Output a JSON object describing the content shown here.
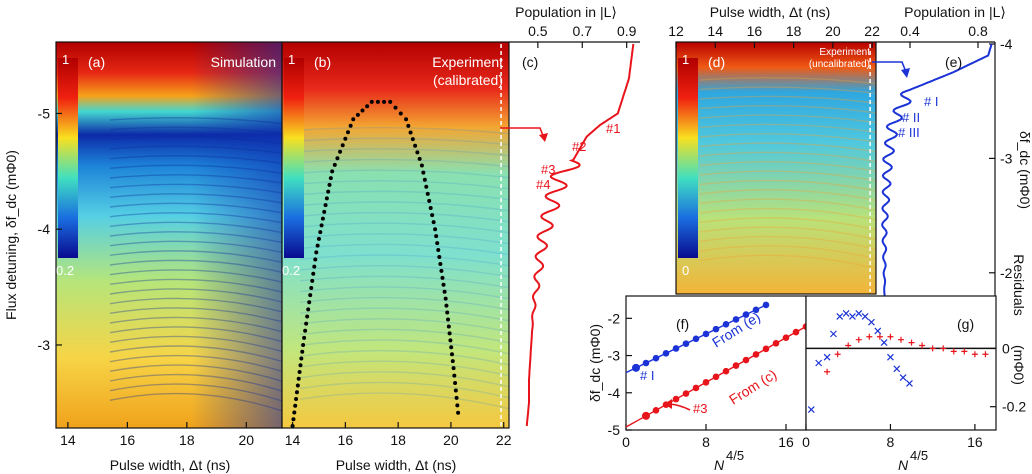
{
  "chart_data": [
    {
      "panel": "(a)",
      "type": "heatmap",
      "title": "Simulation",
      "xlabel": "Pulse width, Δt (ns)",
      "ylabel": "Flux detuning, δf_dc (mΦ0)",
      "xticks": [
        "14",
        "16",
        "18",
        "20"
      ],
      "yticks": [
        "-5",
        "-4",
        "-3"
      ],
      "xlim": [
        13.6,
        21.2
      ],
      "ylim": [
        -2.3,
        -5.6
      ],
      "colorbar": {
        "min_label": "0.2",
        "max_label": "1"
      }
    },
    {
      "panel": "(b)",
      "type": "heatmap",
      "title": "Experiment (calibrated)",
      "title_line1": "Experiment",
      "title_line2": "(calibrated)",
      "xlabel": "Pulse width, Δt (ns)",
      "xticks": [
        "14",
        "16",
        "18",
        "20",
        "22"
      ],
      "xlim": [
        13.6,
        22.2
      ],
      "colorbar": {
        "min_label": "0.2",
        "max_label": "1"
      },
      "dotted_envelope": {
        "x": [
          14.0,
          14.4,
          14.9,
          15.5,
          16.3,
          17.0,
          17.7,
          18.3,
          18.9,
          19.4,
          19.8,
          20.1,
          20.3
        ],
        "y": [
          -2.3,
          -3.0,
          -3.8,
          -4.5,
          -4.95,
          -5.1,
          -5.1,
          -4.95,
          -4.55,
          -4.0,
          -3.4,
          -2.8,
          -2.35
        ]
      },
      "marker_line_x": 21.9
    },
    {
      "panel": "(c)",
      "type": "line",
      "xlabel": "Population in |L⟩",
      "xticks": [
        "0.5",
        "0.7",
        "0.9"
      ],
      "xlim": [
        0.37,
        0.96
      ],
      "annotations": [
        "#1",
        "#2",
        "#3",
        "#4"
      ],
      "series": [
        {
          "color": "#e8141b",
          "x": [
            0.93,
            0.91,
            0.86,
            0.78,
            0.72,
            0.66,
            0.6,
            0.56,
            0.52,
            0.5,
            0.48,
            0.47,
            0.46,
            0.46,
            0.45
          ],
          "y": [
            -5.6,
            -5.3,
            -5.0,
            -4.9,
            -4.8,
            -4.6,
            -4.45,
            -4.2,
            -3.9,
            -3.6,
            -3.3,
            -3.0,
            -2.7,
            -2.5,
            -2.3
          ]
        }
      ]
    },
    {
      "panel": "(d)",
      "type": "heatmap",
      "title": "Experiment (uncalibrated)",
      "title_line1": "Experiment",
      "title_line2": "(uncalibrated)",
      "xlabel": "Pulse width, Δt (ns)",
      "xticks": [
        "12",
        "14",
        "16",
        "18",
        "20",
        "22"
      ],
      "xlim": [
        12.0,
        22.2
      ],
      "colorbar": {
        "min_label": "0",
        "max_label": "1"
      },
      "marker_line_x": 21.9
    },
    {
      "panel": "(e)",
      "type": "line",
      "xlabel": "Population in |L⟩",
      "xticks": [
        "0.4",
        "0.8"
      ],
      "xlim": [
        0.2,
        0.9
      ],
      "ylabel": "δf_dc (mΦ0)",
      "yticks": [
        "-4",
        "-3",
        "-2"
      ],
      "ylim": [
        -1.5,
        -4.0
      ],
      "annotations": [
        "# I",
        "# II",
        "# III"
      ],
      "series": [
        {
          "color": "#1b33d6",
          "x": [
            0.88,
            0.86,
            0.65,
            0.4,
            0.3,
            0.27,
            0.26,
            0.25,
            0.25,
            0.25
          ],
          "y": [
            -4.0,
            -3.9,
            -3.75,
            -3.6,
            -3.3,
            -3.0,
            -2.7,
            -2.4,
            -2.0,
            -1.5
          ]
        }
      ]
    },
    {
      "panel": "(f)",
      "type": "scatter",
      "xlabel": "N^4/5",
      "ylabel": "δf_dc (mΦ0)",
      "xticks": [
        "0",
        "8",
        "16"
      ],
      "yticks": [
        "-2",
        "-3",
        "-4",
        "-5"
      ],
      "xlim": [
        0,
        18
      ],
      "ylim": [
        -1.4,
        -5.0
      ],
      "annotations": [
        "# I",
        "#3"
      ],
      "series": [
        {
          "name": "From (e)",
          "color": "#1b33d6",
          "x": [
            1,
            2,
            3,
            4,
            5,
            6,
            7,
            8,
            9,
            10,
            11,
            12,
            13,
            14
          ],
          "y": [
            -3.33,
            -3.2,
            -3.07,
            -2.94,
            -2.81,
            -2.68,
            -2.55,
            -2.42,
            -2.29,
            -2.16,
            -2.03,
            -1.9,
            -1.77,
            -1.64
          ]
        },
        {
          "name": "From (c)",
          "color": "#e8141b",
          "x": [
            2,
            3,
            4,
            5,
            6,
            7,
            8,
            9,
            10,
            11,
            12,
            13,
            14,
            15,
            16,
            17,
            18
          ],
          "y": [
            -4.62,
            -4.47,
            -4.32,
            -4.17,
            -4.02,
            -3.87,
            -3.72,
            -3.57,
            -3.42,
            -3.27,
            -3.12,
            -2.97,
            -2.82,
            -2.67,
            -2.52,
            -2.37,
            -2.22
          ]
        }
      ]
    },
    {
      "panel": "(g)",
      "type": "scatter",
      "xlabel": "N^4/5",
      "ylabel": "Residuals (mΦ0)",
      "xticks": [
        "0",
        "8",
        "16"
      ],
      "yticks": [
        "0",
        "-0.2"
      ],
      "xlim": [
        0,
        18
      ],
      "ylim": [
        0.18,
        -0.28
      ],
      "series": [
        {
          "marker": "x",
          "color": "#1b33d6",
          "x": [
            0.5,
            1.2,
            2.0,
            2.6,
            3.2,
            3.8,
            4.4,
            5.0,
            5.6,
            6.2,
            6.8,
            7.4,
            8.0,
            8.6,
            9.2,
            9.8
          ],
          "y": [
            -0.21,
            -0.05,
            -0.03,
            0.05,
            0.11,
            0.12,
            0.11,
            0.12,
            0.11,
            0.09,
            0.06,
            0.02,
            -0.03,
            -0.07,
            -0.1,
            -0.12
          ]
        },
        {
          "marker": "+",
          "color": "#e8141b",
          "x": [
            2,
            3,
            4,
            5,
            6,
            7,
            8,
            9,
            10,
            11,
            12,
            13,
            14,
            15,
            16,
            17
          ],
          "y": [
            -0.08,
            -0.02,
            0.01,
            0.03,
            0.04,
            0.04,
            0.04,
            0.03,
            0.02,
            0.01,
            0.0,
            0.0,
            -0.01,
            -0.01,
            -0.02,
            -0.02
          ]
        }
      ]
    }
  ],
  "labels": {
    "c_top_axis": "Population in |L⟩",
    "d_top_axis": "Pulse width, Δt (ns)",
    "e_top_axis": "Population in |L⟩",
    "left_ylabel": "Flux detuning, δf_dc (mΦ0)",
    "right_ylabel": "δf_dc (mΦ0)",
    "bottom_a": "Pulse width, Δt (ns)",
    "bottom_b": "Pulse width, Δt (ns)",
    "f_legend_e": "From (e)",
    "f_legend_c": "From (c)",
    "residuals": "Residuals",
    "residuals_unit": "(mΦ0)",
    "n_label": "N",
    "n_exp": "4/5"
  },
  "colors": {
    "red": "#e8141b",
    "blue": "#1b33d6"
  }
}
